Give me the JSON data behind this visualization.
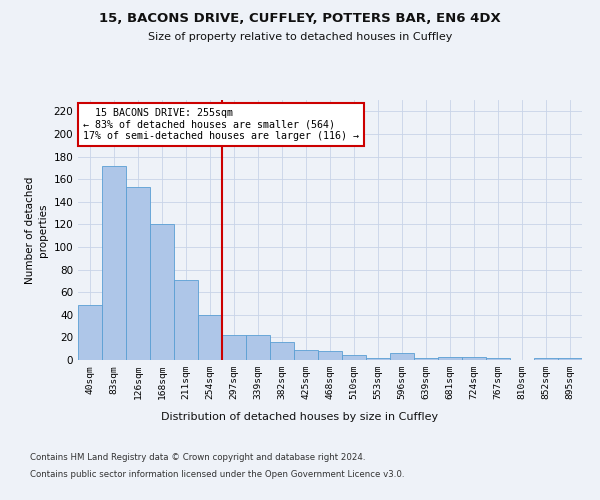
{
  "title1": "15, BACONS DRIVE, CUFFLEY, POTTERS BAR, EN6 4DX",
  "title2": "Size of property relative to detached houses in Cuffley",
  "xlabel": "Distribution of detached houses by size in Cuffley",
  "ylabel": "Number of detached\nproperties",
  "categories": [
    "40sqm",
    "83sqm",
    "126sqm",
    "168sqm",
    "211sqm",
    "254sqm",
    "297sqm",
    "339sqm",
    "382sqm",
    "425sqm",
    "468sqm",
    "510sqm",
    "553sqm",
    "596sqm",
    "639sqm",
    "681sqm",
    "724sqm",
    "767sqm",
    "810sqm",
    "852sqm",
    "895sqm"
  ],
  "values": [
    49,
    172,
    153,
    120,
    71,
    40,
    22,
    22,
    16,
    9,
    8,
    4,
    2,
    6,
    2,
    3,
    3,
    2,
    0,
    2,
    2
  ],
  "bar_color": "#aec6e8",
  "bar_edge_color": "#5a9fd4",
  "vline_x": 5.5,
  "vline_color": "#cc0000",
  "annotation_line1": "  15 BACONS DRIVE: 255sqm",
  "annotation_line2": "← 83% of detached houses are smaller (564)",
  "annotation_line3": "17% of semi-detached houses are larger (116) →",
  "annotation_box_color": "#ffffff",
  "annotation_box_edge": "#cc0000",
  "footer1": "Contains HM Land Registry data © Crown copyright and database right 2024.",
  "footer2": "Contains public sector information licensed under the Open Government Licence v3.0.",
  "bg_color": "#eef2f8",
  "plot_bg_color": "#eef2f8",
  "ylim": [
    0,
    230
  ],
  "yticks": [
    0,
    20,
    40,
    60,
    80,
    100,
    120,
    140,
    160,
    180,
    200,
    220
  ]
}
